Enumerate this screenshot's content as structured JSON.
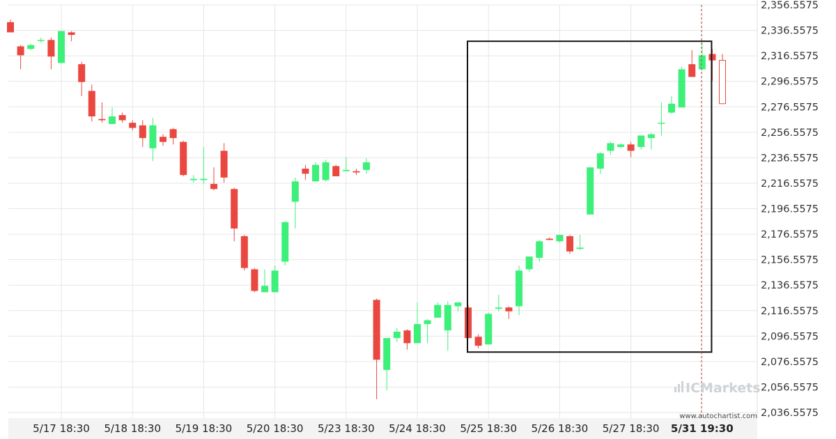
{
  "chart_data": {
    "type": "candlestick",
    "colors": {
      "up": "#3cf07a",
      "down": "#e9473f",
      "frame": "#111111",
      "grid": "#e6e6e6",
      "dashed": "#c44444"
    },
    "y_ticks": [
      "2,356.5575",
      "2,336.5575",
      "2,316.5575",
      "2,296.5575",
      "2,276.5575",
      "2,256.5575",
      "2,236.5575",
      "2,216.5575",
      "2,196.5575",
      "2,176.5575",
      "2,156.5575",
      "2,136.5575",
      "2,116.5575",
      "2,096.5575",
      "2,076.5575",
      "2,056.5575",
      "2,036.5575"
    ],
    "ylim": [
      2036.5575,
      2356.5575
    ],
    "x_ticks": [
      {
        "label": "5/17 18:30",
        "index": 5
      },
      {
        "label": "5/18 18:30",
        "index": 12
      },
      {
        "label": "5/19 18:30",
        "index": 19
      },
      {
        "label": "5/20 18:30",
        "index": 26
      },
      {
        "label": "5/23 18:30",
        "index": 33
      },
      {
        "label": "5/24 18:30",
        "index": 40
      },
      {
        "label": "5/25 18:30",
        "index": 47
      },
      {
        "label": "5/26 18:30",
        "index": 54
      },
      {
        "label": "5/27 18:30",
        "index": 61
      },
      {
        "label": "5/31 19:30",
        "index": 68,
        "current": true
      }
    ],
    "candles": [
      {
        "o": 2343,
        "h": 2345,
        "l": 2335,
        "c": 2335
      },
      {
        "o": 2324,
        "h": 2325,
        "l": 2306,
        "c": 2317
      },
      {
        "o": 2322,
        "h": 2326,
        "l": 2321,
        "c": 2325
      },
      {
        "o": 2329,
        "h": 2331,
        "l": 2327,
        "c": 2329
      },
      {
        "o": 2329,
        "h": 2331,
        "l": 2306,
        "c": 2316
      },
      {
        "o": 2311,
        "h": 2336,
        "l": 2310,
        "c": 2336
      },
      {
        "o": 2335,
        "h": 2336,
        "l": 2328,
        "c": 2333
      },
      {
        "o": 2310,
        "h": 2312,
        "l": 2285,
        "c": 2296
      },
      {
        "o": 2289,
        "h": 2294,
        "l": 2265,
        "c": 2269
      },
      {
        "o": 2267,
        "h": 2280,
        "l": 2264,
        "c": 2266
      },
      {
        "o": 2263,
        "h": 2276,
        "l": 2263,
        "c": 2269
      },
      {
        "o": 2270,
        "h": 2272,
        "l": 2264,
        "c": 2266
      },
      {
        "o": 2264,
        "h": 2266,
        "l": 2258,
        "c": 2260
      },
      {
        "o": 2262,
        "h": 2266,
        "l": 2245,
        "c": 2252
      },
      {
        "o": 2244,
        "h": 2268,
        "l": 2234,
        "c": 2262
      },
      {
        "o": 2253,
        "h": 2255,
        "l": 2246,
        "c": 2249
      },
      {
        "o": 2259,
        "h": 2260,
        "l": 2247,
        "c": 2252
      },
      {
        "o": 2249,
        "h": 2250,
        "l": 2222,
        "c": 2223
      },
      {
        "o": 2219,
        "h": 2223,
        "l": 2217,
        "c": 2220
      },
      {
        "o": 2219,
        "h": 2245,
        "l": 2216,
        "c": 2220
      },
      {
        "o": 2216,
        "h": 2229,
        "l": 2211,
        "c": 2212
      },
      {
        "o": 2242,
        "h": 2248,
        "l": 2217,
        "c": 2221
      },
      {
        "o": 2212,
        "h": 2213,
        "l": 2171,
        "c": 2181
      },
      {
        "o": 2175,
        "h": 2176,
        "l": 2148,
        "c": 2150
      },
      {
        "o": 2149,
        "h": 2150,
        "l": 2131,
        "c": 2132
      },
      {
        "o": 2131,
        "h": 2149,
        "l": 2131,
        "c": 2136
      },
      {
        "o": 2131,
        "h": 2152,
        "l": 2131,
        "c": 2148
      },
      {
        "o": 2155,
        "h": 2187,
        "l": 2152,
        "c": 2186
      },
      {
        "o": 2202,
        "h": 2221,
        "l": 2181,
        "c": 2218
      },
      {
        "o": 2228,
        "h": 2231,
        "l": 2219,
        "c": 2224
      },
      {
        "o": 2218,
        "h": 2233,
        "l": 2218,
        "c": 2231
      },
      {
        "o": 2219,
        "h": 2235,
        "l": 2218,
        "c": 2233
      },
      {
        "o": 2230,
        "h": 2231,
        "l": 2222,
        "c": 2222
      },
      {
        "o": 2226,
        "h": 2237,
        "l": 2226,
        "c": 2227
      },
      {
        "o": 2226,
        "h": 2228,
        "l": 2223,
        "c": 2225
      },
      {
        "o": 2227,
        "h": 2236,
        "l": 2224,
        "c": 2233
      },
      {
        "o": 2125,
        "h": 2126,
        "l": 2047,
        "c": 2078
      },
      {
        "o": 2070,
        "h": 2095,
        "l": 2054,
        "c": 2095
      },
      {
        "o": 2095,
        "h": 2103,
        "l": 2092,
        "c": 2100
      },
      {
        "o": 2101,
        "h": 2102,
        "l": 2086,
        "c": 2091
      },
      {
        "o": 2091,
        "h": 2123,
        "l": 2091,
        "c": 2106
      },
      {
        "o": 2106,
        "h": 2110,
        "l": 2091,
        "c": 2109
      },
      {
        "o": 2111,
        "h": 2123,
        "l": 2111,
        "c": 2121
      },
      {
        "o": 2101,
        "h": 2124,
        "l": 2085,
        "c": 2121
      },
      {
        "o": 2120,
        "h": 2123,
        "l": 2116,
        "c": 2123
      },
      {
        "o": 2119,
        "h": 2121,
        "l": 2095,
        "c": 2095
      },
      {
        "o": 2096,
        "h": 2098,
        "l": 2087,
        "c": 2089
      },
      {
        "o": 2090,
        "h": 2115,
        "l": 2090,
        "c": 2114
      },
      {
        "o": 2118,
        "h": 2129,
        "l": 2116,
        "c": 2119
      },
      {
        "o": 2119,
        "h": 2120,
        "l": 2110,
        "c": 2116
      },
      {
        "o": 2120,
        "h": 2152,
        "l": 2113,
        "c": 2148
      },
      {
        "o": 2149,
        "h": 2159,
        "l": 2147,
        "c": 2159
      },
      {
        "o": 2158,
        "h": 2172,
        "l": 2155,
        "c": 2171
      },
      {
        "o": 2173,
        "h": 2174,
        "l": 2172,
        "c": 2172
      },
      {
        "o": 2171,
        "h": 2176,
        "l": 2170,
        "c": 2176
      },
      {
        "o": 2175,
        "h": 2176,
        "l": 2161,
        "c": 2163
      },
      {
        "o": 2165,
        "h": 2176,
        "l": 2164,
        "c": 2166
      },
      {
        "o": 2192,
        "h": 2229,
        "l": 2192,
        "c": 2229
      },
      {
        "o": 2228,
        "h": 2241,
        "l": 2224,
        "c": 2240
      },
      {
        "o": 2242,
        "h": 2249,
        "l": 2239,
        "c": 2248
      },
      {
        "o": 2245,
        "h": 2248,
        "l": 2244,
        "c": 2247
      },
      {
        "o": 2247,
        "h": 2249,
        "l": 2237,
        "c": 2242
      },
      {
        "o": 2245,
        "h": 2254,
        "l": 2243,
        "c": 2254
      },
      {
        "o": 2252,
        "h": 2256,
        "l": 2243,
        "c": 2255
      },
      {
        "o": 2264,
        "h": 2280,
        "l": 2254,
        "c": 2264
      },
      {
        "o": 2272,
        "h": 2285,
        "l": 2271,
        "c": 2279
      },
      {
        "o": 2276,
        "h": 2308,
        "l": 2276,
        "c": 2306
      },
      {
        "o": 2310,
        "h": 2321,
        "l": 2300,
        "c": 2300
      },
      {
        "o": 2306,
        "h": 2327,
        "l": 2305,
        "c": 2317
      },
      {
        "o": 2318,
        "h": 2322,
        "l": 2297,
        "c": 2313
      },
      {
        "o": 2313,
        "h": 2318,
        "l": 2279,
        "c": 2279,
        "current": true
      }
    ],
    "highlight_box": {
      "start_index": 45,
      "end_index": 69,
      "y_low": 2084,
      "y_high": 2328
    },
    "current_marker_index": 68
  },
  "branding": {
    "watermark": "ICMarkets",
    "source": "www.autochartist.com"
  }
}
